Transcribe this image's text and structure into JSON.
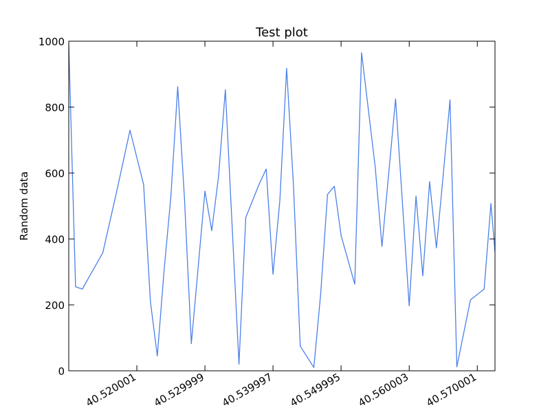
{
  "colors": {
    "line": "#4a7fe8",
    "axes": "#000000",
    "background": "#ffffff"
  },
  "chart_data": {
    "type": "line",
    "title": "Test plot",
    "xlabel": "",
    "ylabel": "Random data",
    "xlim": [
      40.51,
      40.5726
    ],
    "ylim": [
      0,
      1000
    ],
    "grid": false,
    "x_ticks": [
      {
        "value": 40.520001,
        "label": "40.520001"
      },
      {
        "value": 40.529999,
        "label": "40.529999"
      },
      {
        "value": 40.539997,
        "label": "40.539997"
      },
      {
        "value": 40.549995,
        "label": "40.549995"
      },
      {
        "value": 40.560003,
        "label": "40.560003"
      },
      {
        "value": 40.570001,
        "label": "40.570001"
      }
    ],
    "y_ticks": [
      {
        "value": 0,
        "label": "0"
      },
      {
        "value": 200,
        "label": "200"
      },
      {
        "value": 400,
        "label": "400"
      },
      {
        "value": 600,
        "label": "600"
      },
      {
        "value": 800,
        "label": "800"
      },
      {
        "value": 1000,
        "label": "1000"
      }
    ],
    "series": [
      {
        "x": [
          40.51,
          40.511,
          40.512,
          40.513,
          40.515,
          40.517,
          40.519,
          40.521,
          40.522,
          40.523,
          40.524,
          40.525,
          40.526,
          40.527,
          40.528,
          40.53,
          40.531,
          40.532,
          40.533,
          40.535,
          40.536,
          40.538,
          40.539,
          40.54,
          40.541,
          40.542,
          40.543,
          40.544,
          40.546,
          40.547,
          40.548,
          40.549,
          40.55,
          40.552,
          40.553,
          40.555,
          40.556,
          40.558,
          40.56,
          40.561,
          40.562,
          40.563,
          40.564,
          40.565,
          40.566,
          40.567,
          40.569,
          40.571,
          40.572,
          40.5726
        ],
        "y": [
          995,
          255,
          248,
          285,
          358,
          540,
          730,
          565,
          210,
          45,
          305,
          530,
          862,
          520,
          82,
          545,
          425,
          590,
          853,
          20,
          465,
          568,
          612,
          293,
          515,
          918,
          565,
          75,
          10,
          235,
          535,
          560,
          410,
          263,
          965,
          620,
          377,
          825,
          197,
          530,
          288,
          574,
          373,
          595,
          822,
          12,
          215,
          248,
          508,
          360
        ]
      }
    ]
  }
}
